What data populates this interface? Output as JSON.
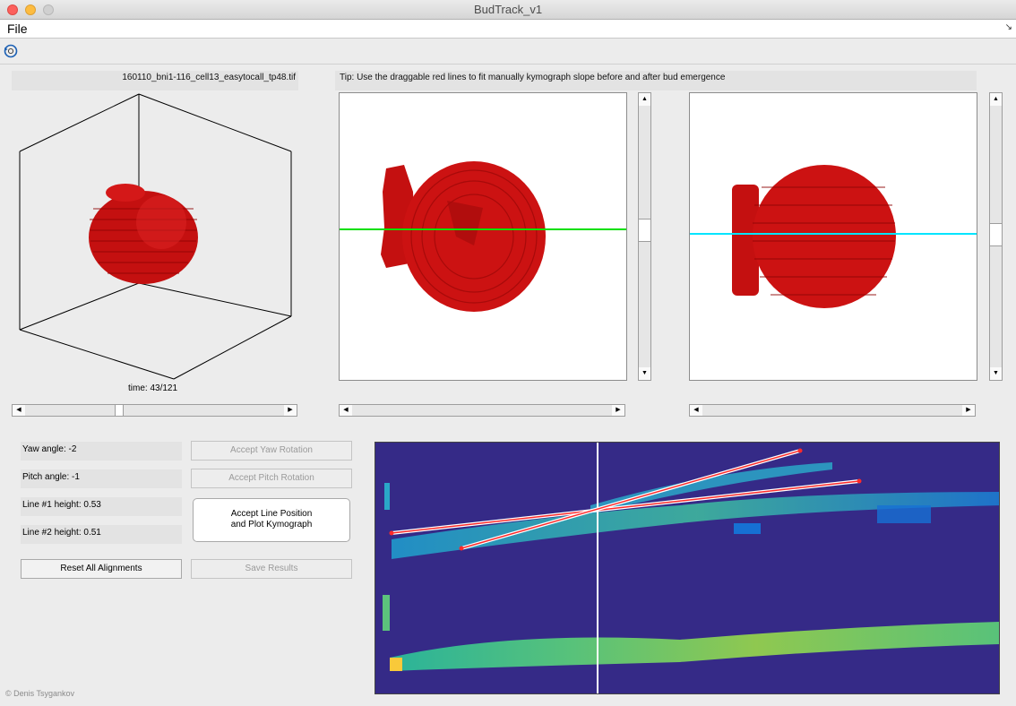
{
  "window": {
    "title": "BudTrack_v1"
  },
  "menubar": {
    "file": "File",
    "arrow": "↘"
  },
  "toolbar": {
    "rotate_icon": "rotate-3d-icon"
  },
  "header": {
    "filename": "160110_bni1-116_cell13_easytocall_tp48.tif",
    "tip": "Tip: Use the draggable red lines to fit manually kymograph slope before and after bud emergence"
  },
  "view3d": {
    "time_label": "time: 43/121",
    "time_current": 43,
    "time_total": 121
  },
  "view_side1": {
    "line_color": "#00e000",
    "line_position": 0.47
  },
  "view_side2": {
    "line_color": "#00e5ff",
    "line_position": 0.49
  },
  "controls": {
    "yaw": "Yaw angle: -2",
    "pitch": "Pitch angle: -1",
    "line1": "Line #1 height: 0.53",
    "line2": "Line #2 height: 0.51",
    "accept_yaw": "Accept Yaw Rotation",
    "accept_pitch": "Accept Pitch Rotation",
    "accept_line_1": "Accept Line Position",
    "accept_line_2": "and Plot Kymograph",
    "reset": "Reset All Alignments",
    "save": "Save Results"
  },
  "colors": {
    "cell": "#d21414",
    "kymo_bg": "#352a87",
    "fit_line": "#ff2a2a"
  },
  "credit": "© Denis Tsygankov"
}
